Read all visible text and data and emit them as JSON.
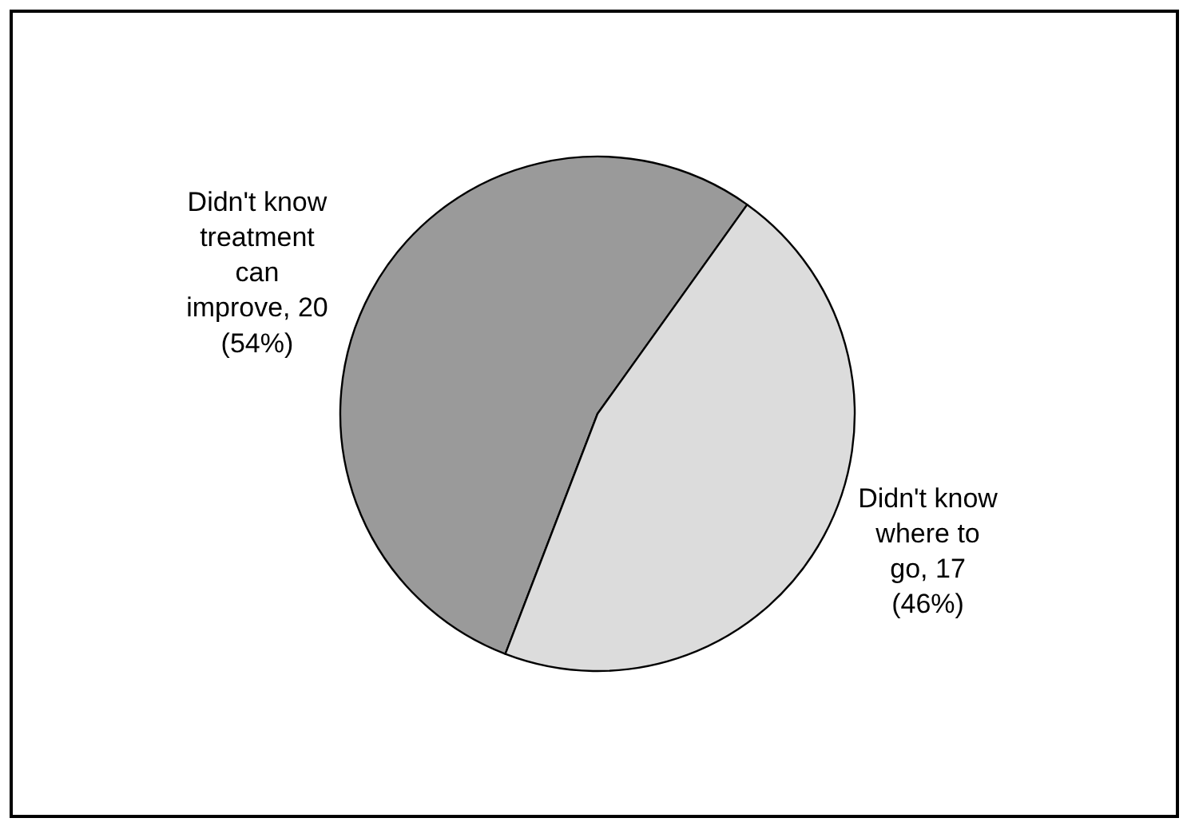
{
  "chart_data": {
    "type": "pie",
    "categories": [
      "Didn't know treatment can improve, 20 (54%)",
      "Didn't know where to go, 17 (46%)"
    ],
    "values": [
      20,
      17
    ],
    "colors": [
      "#9a9a9a",
      "#dcdcdc"
    ],
    "legend": false
  }
}
